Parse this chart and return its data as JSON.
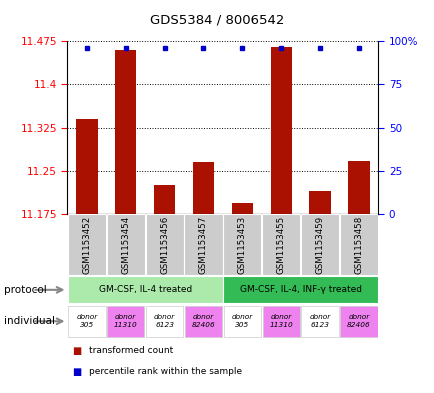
{
  "title": "GDS5384 / 8006542",
  "samples": [
    "GSM1153452",
    "GSM1153454",
    "GSM1153456",
    "GSM1153457",
    "GSM1153453",
    "GSM1153455",
    "GSM1153459",
    "GSM1153458"
  ],
  "red_values": [
    11.34,
    11.46,
    11.225,
    11.265,
    11.195,
    11.465,
    11.215,
    11.268
  ],
  "y_min": 11.175,
  "y_max": 11.475,
  "y_ticks": [
    11.175,
    11.25,
    11.325,
    11.4,
    11.475
  ],
  "y_right_ticks": [
    0,
    25,
    50,
    75,
    100
  ],
  "y_right_labels": [
    "0",
    "25",
    "50",
    "75",
    "100%"
  ],
  "protocol_groups": [
    {
      "label": "GM-CSF, IL-4 treated",
      "start": 0,
      "end": 4,
      "color": "#abeaab"
    },
    {
      "label": "GM-CSF, IL-4, INF-γ treated",
      "start": 4,
      "end": 8,
      "color": "#33bb55"
    }
  ],
  "individuals": [
    {
      "label": "donor\n305",
      "color": "#ffffff"
    },
    {
      "label": "donor\n11310",
      "color": "#ee82ee"
    },
    {
      "label": "donor\n6123",
      "color": "#ffffff"
    },
    {
      "label": "donor\n82406",
      "color": "#ee82ee"
    },
    {
      "label": "donor\n305",
      "color": "#ffffff"
    },
    {
      "label": "donor\n11310",
      "color": "#ee82ee"
    },
    {
      "label": "donor\n6123",
      "color": "#ffffff"
    },
    {
      "label": "donor\n82406",
      "color": "#ee82ee"
    }
  ],
  "bar_color": "#aa1100",
  "dot_color": "#0000cc",
  "bar_width": 0.55,
  "background_color": "#ffffff",
  "tick_fontsize": 7.5,
  "sample_fontsize": 6.2,
  "xticklabel_bg": "#cccccc"
}
